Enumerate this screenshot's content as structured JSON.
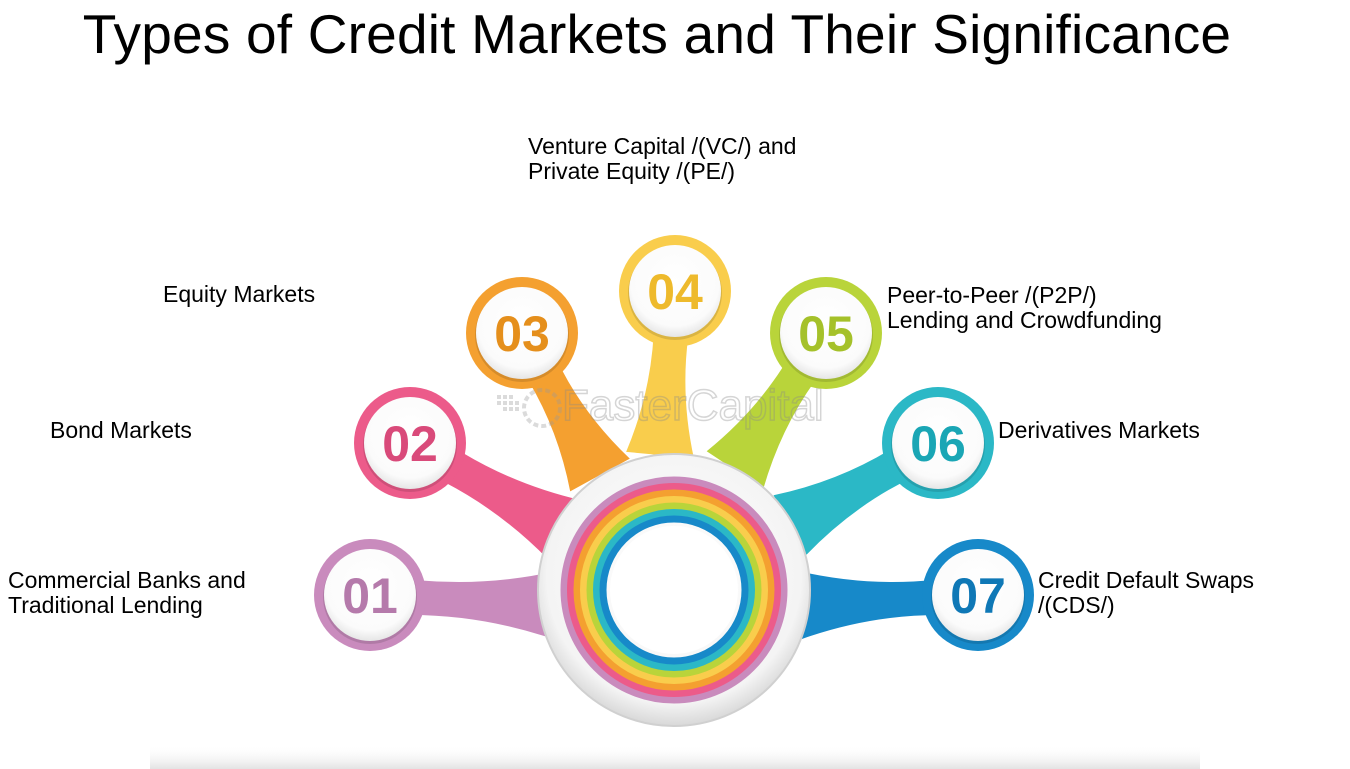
{
  "title": "Types of Credit Markets and Their Significance",
  "watermark": "FasterCapital",
  "items": [
    {
      "number": "01",
      "lines": [
        "Commercial Banks and",
        "Traditional Lending"
      ],
      "color": "#c98bbd",
      "ring": "#b57aab"
    },
    {
      "number": "02",
      "lines": [
        "Bond Markets"
      ],
      "color": "#ec5b8a",
      "ring": "#d94a7a"
    },
    {
      "number": "03",
      "lines": [
        "Equity Markets"
      ],
      "color": "#f4a030",
      "ring": "#e58f1c"
    },
    {
      "number": "04",
      "lines": [
        "Venture Capital /(VC/) and",
        "Private Equity /(PE/)"
      ],
      "color": "#f9cd4c",
      "ring": "#eeba2c"
    },
    {
      "number": "05",
      "lines": [
        "Peer-to-Peer /(P2P/)",
        "Lending and Crowdfunding"
      ],
      "color": "#b9d43a",
      "ring": "#a5c12a"
    },
    {
      "number": "06",
      "lines": [
        "Derivatives Markets"
      ],
      "color": "#2bb8c6",
      "ring": "#1aa6b5"
    },
    {
      "number": "07",
      "lines": [
        "Credit Default Swaps",
        "/(CDS/)"
      ],
      "color": "#1789c9",
      "ring": "#0f78b6"
    }
  ]
}
